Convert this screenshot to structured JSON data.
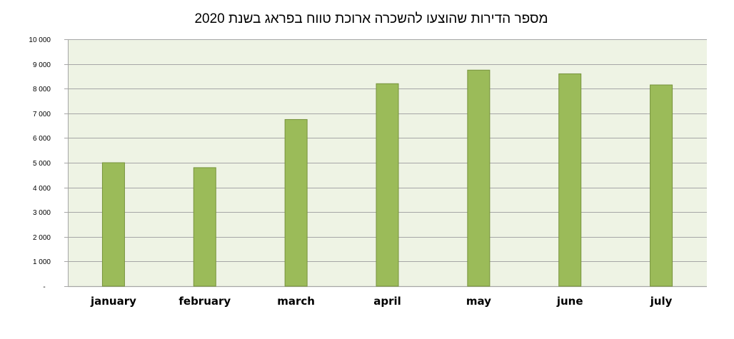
{
  "chart_data": {
    "type": "bar",
    "title": "מספר הדירות שהוצעו להשכרה ארוכת טווח בפראג בשנת 2020",
    "xlabel": "",
    "ylabel": "",
    "categories": [
      "january",
      "february",
      "march",
      "april",
      "may",
      "june",
      "july"
    ],
    "values": [
      5000,
      4800,
      6750,
      8200,
      8750,
      8600,
      8150
    ],
    "ylim": [
      0,
      10000
    ],
    "yticks": [
      0,
      1000,
      2000,
      3000,
      4000,
      5000,
      6000,
      7000,
      8000,
      9000,
      10000
    ],
    "ytick_labels": [
      "-",
      "1 000",
      "2 000",
      "3 000",
      "4 000",
      "5 000",
      "6 000",
      "7 000",
      "8 000",
      "9 000",
      "10 000"
    ],
    "grid": true,
    "colors": {
      "bar_fill": "#9bbb59",
      "bar_stroke": "#77933c",
      "plot_background": "#eef3e4",
      "gridline": "#a6a6a6"
    }
  }
}
